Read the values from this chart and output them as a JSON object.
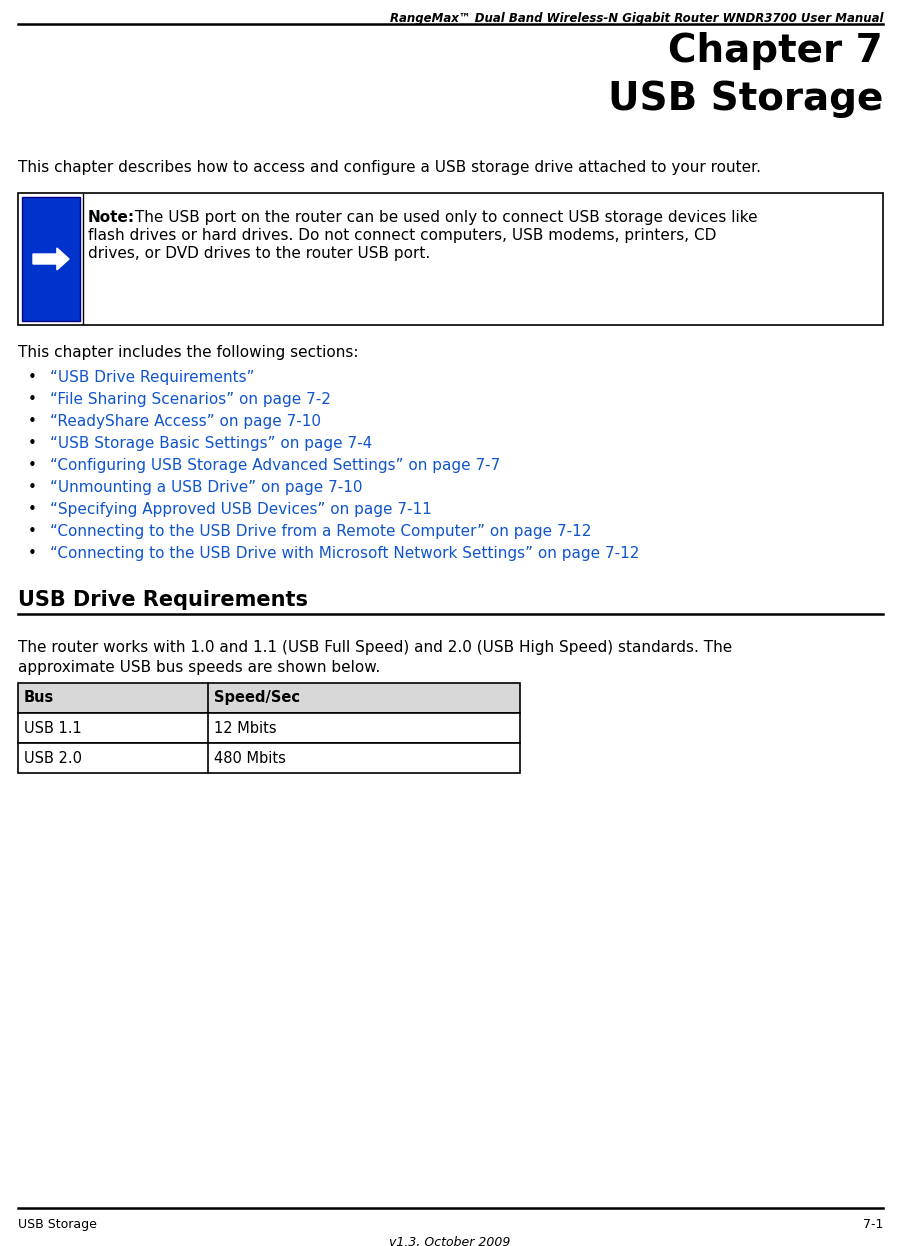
{
  "header_text": "RangeMax™ Dual Band Wireless-N Gigabit Router WNDR3700 User Manual",
  "chapter_line1": "Chapter 7",
  "chapter_line2": "USB Storage",
  "intro_text": "This chapter describes how to access and configure a USB storage drive attached to your router.",
  "note_bold": "Note:",
  "note_line1": " The USB port on the router can be used only to connect USB storage devices like",
  "note_line2": "flash drives or hard drives. Do not connect computers, USB modems, printers, CD",
  "note_line3": "drives, or DVD drives to the router USB port.",
  "sections_intro": "This chapter includes the following sections:",
  "bullet_items": [
    "“USB Drive Requirements”",
    "“File Sharing Scenarios” on page 7-2",
    "“ReadyShare Access” on page 7-10",
    "“USB Storage Basic Settings” on page 7-4",
    "“Configuring USB Storage Advanced Settings” on page 7-7",
    "“Unmounting a USB Drive” on page 7-10",
    "“Specifying Approved USB Devices” on page 7-11",
    "“Connecting to the USB Drive from a Remote Computer” on page 7-12",
    "“Connecting to the USB Drive with Microsoft Network Settings” on page 7-12"
  ],
  "section_heading": "USB Drive Requirements",
  "body_line1": "The router works with 1.0 and 1.1 (USB Full Speed) and 2.0 (USB High Speed) standards. The",
  "body_line2": "approximate USB bus speeds are shown below.",
  "table_headers": [
    "Bus",
    "Speed/Sec"
  ],
  "table_rows": [
    [
      "USB 1.1",
      "12 Mbits"
    ],
    [
      "USB 2.0",
      "480 Mbits"
    ]
  ],
  "footer_left": "USB Storage",
  "footer_right": "7-1",
  "footer_center": "v1.3, October 2009",
  "link_color": "#1155CC",
  "bg_color": "#ffffff",
  "text_color": "#000000",
  "header_line_color": "#000000",
  "note_box_border": "#000000",
  "note_icon_bg": "#0033CC",
  "table_border": "#000000",
  "table_header_bg": "#d8d8d8"
}
